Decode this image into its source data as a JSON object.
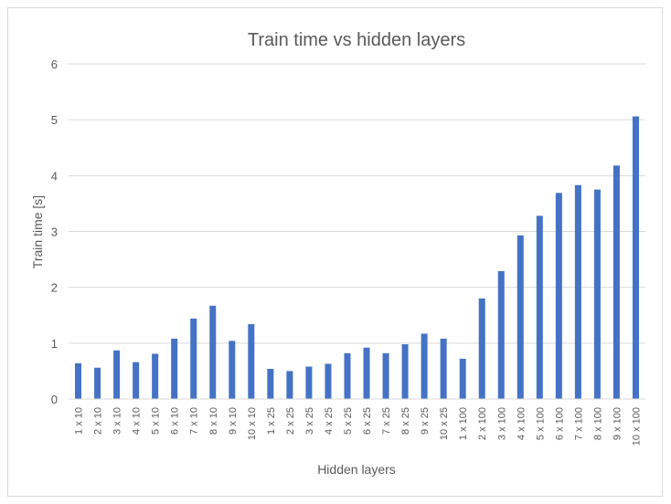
{
  "chart_data": {
    "type": "bar",
    "title": "Train time vs hidden layers",
    "xlabel": "Hidden layers",
    "ylabel": "Train time [s]",
    "ylim": [
      0,
      6
    ],
    "yticks": [
      "0",
      "1",
      "2",
      "3",
      "4",
      "5",
      "6"
    ],
    "grid": true,
    "legend": "none",
    "bar_color": "#4472c4",
    "categories": [
      "1 x 10",
      "2 x 10",
      "3 x 10",
      "4 x 10",
      "5 x 10",
      "6 x 10",
      "7 x 10",
      "8 x 10",
      "9 x 10",
      "10 x 10",
      "1 x 25",
      "2 x 25",
      "3 x 25",
      "4 x 25",
      "5 x 25",
      "6 x 25",
      "7 x 25",
      "8 x 25",
      "9 x 25",
      "10 x 25",
      "1 x 100",
      "2 x 100",
      "3 x 100",
      "4 x 100",
      "5 x 100",
      "6 x 100",
      "7 x 100",
      "8 x 100",
      "9 x 100",
      "10 x 100"
    ],
    "values": [
      0.64,
      0.56,
      0.87,
      0.66,
      0.81,
      1.08,
      1.44,
      1.67,
      1.04,
      1.34,
      0.54,
      0.5,
      0.58,
      0.63,
      0.82,
      0.92,
      0.82,
      0.98,
      1.17,
      1.08,
      0.72,
      1.8,
      2.29,
      2.93,
      3.28,
      3.69,
      3.83,
      3.75,
      4.18,
      5.06
    ]
  }
}
